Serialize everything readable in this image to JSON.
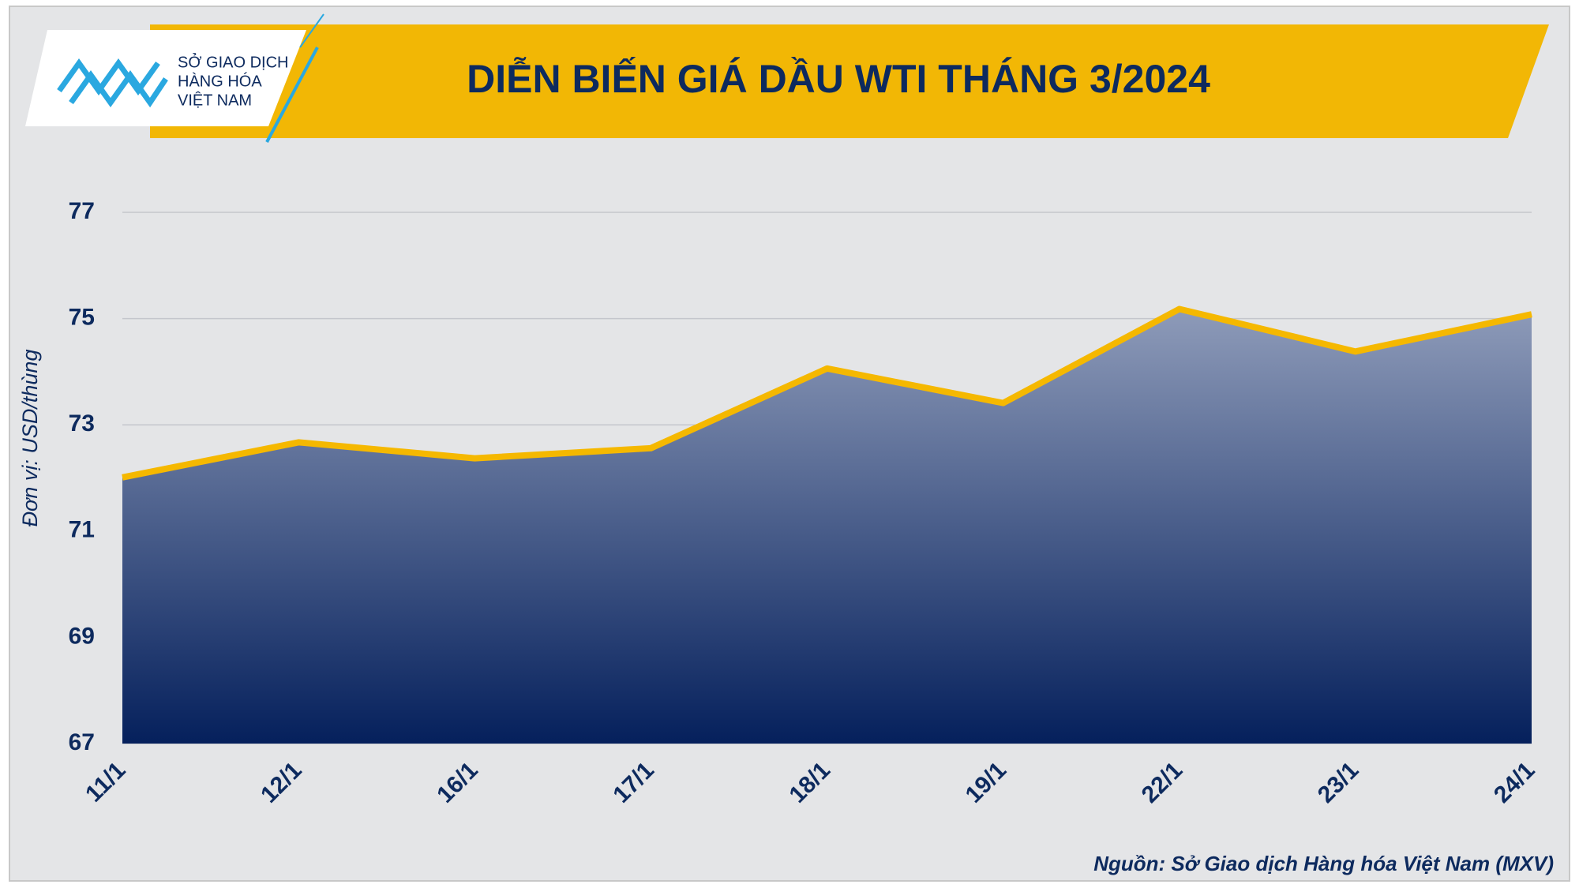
{
  "logo": {
    "lines": [
      "SỞ GIAO DỊCH",
      "HÀNG HÓA",
      "VIỆT NAM"
    ]
  },
  "chart_data": {
    "type": "area",
    "title": "DIỄN BIẾN GIÁ DẦU WTI THÁNG 3/2024",
    "y_label": "Đơn vị: USD/thùng",
    "source": "Nguồn: Sở Giao dịch Hàng hóa Việt Nam (MXV)",
    "categories": [
      "11/1",
      "12/1",
      "16/1",
      "17/1",
      "18/1",
      "19/1",
      "22/1",
      "23/1",
      "24/1"
    ],
    "values": [
      72.01,
      72.67,
      72.37,
      72.56,
      74.06,
      73.41,
      75.18,
      74.38,
      75.08
    ],
    "color": "#f5b800",
    "area_gradient": [
      "#8e9bb9",
      "#05205c"
    ],
    "ylim": [
      67,
      77
    ],
    "yticks": [
      67,
      69,
      71,
      73,
      75,
      77
    ],
    "grid": true
  }
}
